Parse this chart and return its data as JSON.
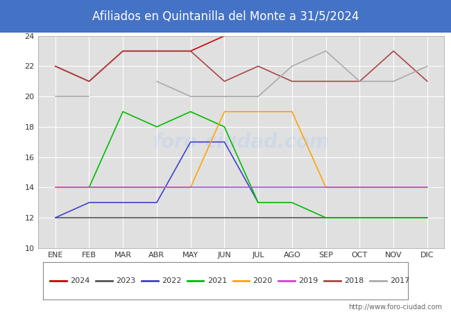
{
  "title": "Afiliados en Quintanilla del Monte a 31/5/2024",
  "title_color": "#ffffff",
  "title_bg_color": "#4472c4",
  "months": [
    "ENE",
    "FEB",
    "MAR",
    "ABR",
    "MAY",
    "JUN",
    "JUL",
    "AGO",
    "SEP",
    "OCT",
    "NOV",
    "DIC"
  ],
  "ylim": [
    10,
    24
  ],
  "yticks": [
    10,
    12,
    14,
    16,
    18,
    20,
    22,
    24
  ],
  "series": {
    "2024": {
      "values": [
        22,
        21,
        23,
        23,
        23,
        24,
        null,
        null,
        null,
        null,
        null,
        null
      ],
      "color": "#cc0000"
    },
    "2023": {
      "values": [
        12,
        12,
        12,
        12,
        12,
        12,
        12,
        12,
        12,
        12,
        12,
        12
      ],
      "color": "#555555"
    },
    "2022": {
      "values": [
        12,
        13,
        13,
        13,
        17,
        17,
        13,
        null,
        null,
        null,
        null,
        null
      ],
      "color": "#4040cc"
    },
    "2021": {
      "values": [
        null,
        14,
        19,
        18,
        19,
        18,
        13,
        13,
        12,
        12,
        12,
        12
      ],
      "color": "#00bb00"
    },
    "2020": {
      "values": [
        14,
        14,
        14,
        14,
        14,
        19,
        19,
        19,
        14,
        14,
        14,
        14
      ],
      "color": "#ffa500"
    },
    "2019": {
      "values": [
        14,
        14,
        14,
        14,
        14,
        14,
        14,
        14,
        14,
        14,
        14,
        14
      ],
      "color": "#cc44cc"
    },
    "2018": {
      "values": [
        22,
        21,
        23,
        23,
        23,
        21,
        22,
        21,
        21,
        21,
        23,
        21
      ],
      "color": "#aa4444"
    },
    "2017": {
      "values": [
        20,
        20,
        null,
        21,
        20,
        20,
        20,
        22,
        23,
        21,
        21,
        22
      ],
      "color": "#aaaaaa"
    }
  },
  "year_order": [
    "2024",
    "2023",
    "2022",
    "2021",
    "2020",
    "2019",
    "2018",
    "2017"
  ],
  "url": "http://www.foro-ciudad.com",
  "bg_plot": "#e0e0e0",
  "grid_color": "#ffffff",
  "watermark_text": "foro-ciudad.com",
  "watermark_color": "#c5d5ea",
  "watermark_alpha": 0.6
}
